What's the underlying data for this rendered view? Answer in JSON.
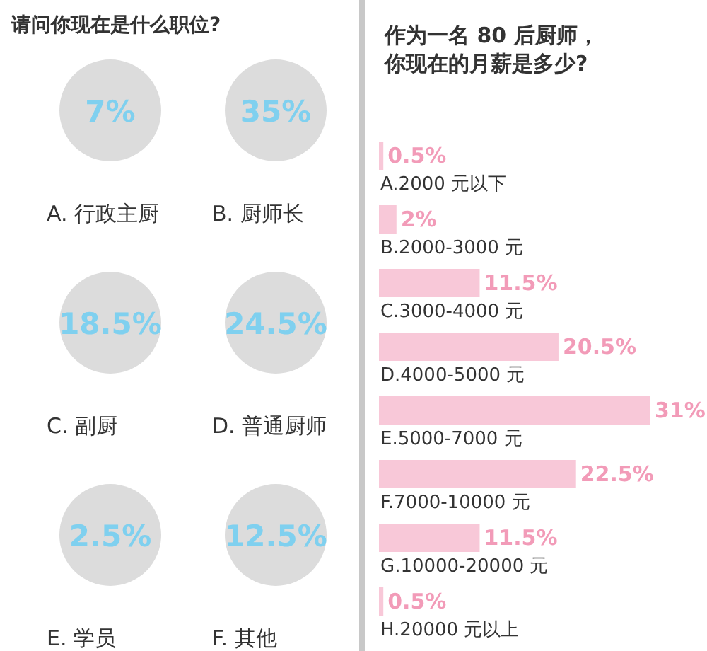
{
  "chart_data": [
    {
      "type": "other",
      "title": "请问你现在是什么职位?",
      "categories": [
        "A. 行政主厨",
        "B. 厨师长",
        "C. 副厨",
        "D. 普通厨师",
        "E. 学员",
        "F. 其他"
      ],
      "values": [
        7,
        35,
        18.5,
        24.5,
        2.5,
        12.5
      ],
      "value_labels": [
        "7%",
        "35%",
        "18.5%",
        "24.5%",
        "2.5%",
        "12.5%"
      ],
      "color": "#dcdcdc"
    },
    {
      "type": "bar",
      "orientation": "horizontal",
      "title": "作为一名 80 后厨师，你现在的月薪是多少?",
      "categories": [
        "A.2000 元以下",
        "B.2000-3000 元",
        "C.3000-4000 元",
        "D.4000-5000 元",
        "E.5000-7000 元",
        "F.7000-10000 元",
        "G.10000-20000 元",
        "H.20000 元以上"
      ],
      "values": [
        0.5,
        2,
        11.5,
        20.5,
        31,
        22.5,
        11.5,
        0.5
      ],
      "value_labels": [
        "0.5%",
        "2%",
        "11.5%",
        "20.5%",
        "31%",
        "22.5%",
        "11.5%",
        "0.5%"
      ],
      "color": "#f8c8d8"
    }
  ]
}
